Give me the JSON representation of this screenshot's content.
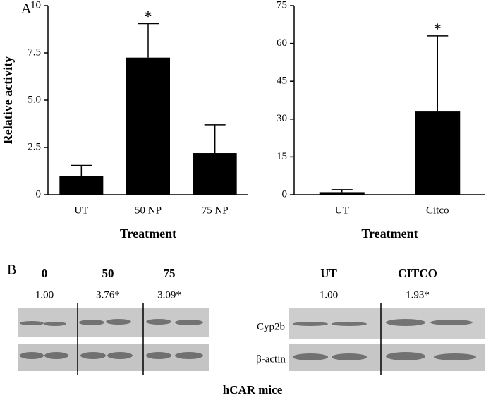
{
  "chart_data": [
    {
      "type": "bar",
      "ylabel": "Relative activity",
      "xlabel": "Treatment",
      "categories": [
        "UT",
        "50 NP",
        "75 NP"
      ],
      "values": [
        1.0,
        7.25,
        2.2
      ],
      "errors": [
        0.55,
        1.8,
        1.5
      ],
      "color": "#000000",
      "ylim": [
        0,
        10
      ],
      "yticks": [
        0,
        2.5,
        {
          "value": 5,
          "label": "5.0"
        },
        7.5,
        10
      ],
      "annotations": [
        {
          "text": "*",
          "category": "50 NP"
        }
      ]
    },
    {
      "type": "bar",
      "xlabel": "Treatment",
      "categories": [
        "UT",
        "Citco"
      ],
      "values": [
        1,
        33
      ],
      "errors": [
        1,
        30
      ],
      "color": "#000000",
      "ylim": [
        0,
        75
      ],
      "yticks": [
        0,
        15,
        30,
        45,
        60,
        75
      ],
      "annotations": [
        {
          "text": "*",
          "category": "Citco"
        }
      ]
    }
  ],
  "panel_labels": [
    "A",
    "B"
  ],
  "blot": {
    "left": {
      "groups": [
        "0",
        "50",
        "75"
      ],
      "ratios": [
        "1.00",
        "3.76*",
        "3.09*"
      ]
    },
    "right": {
      "groups": [
        "UT",
        "CITCO"
      ],
      "ratios": [
        "1.00",
        "1.93*"
      ]
    },
    "rows": [
      "Cyp2b",
      "β-actin"
    ],
    "caption": "hCAR mice"
  }
}
